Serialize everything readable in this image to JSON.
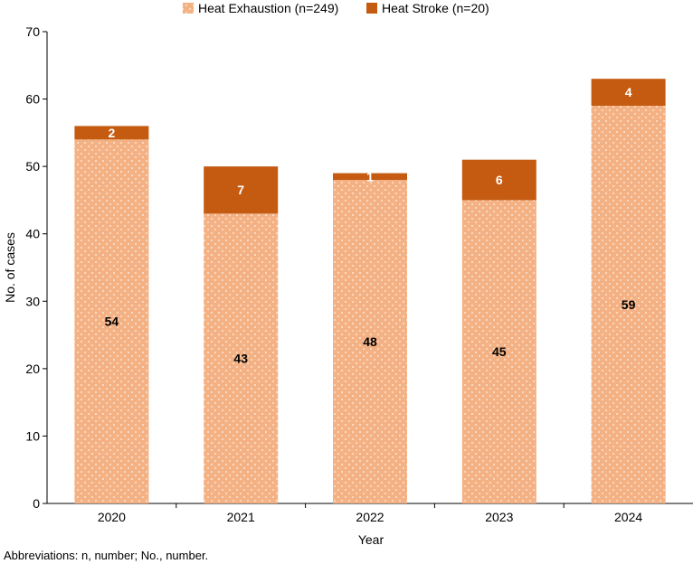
{
  "chart_data": {
    "type": "bar",
    "stacked": true,
    "title": "",
    "xlabel": "Year",
    "ylabel": "No. of cases",
    "ylim": [
      0,
      70
    ],
    "yticks": [
      0,
      10,
      20,
      30,
      40,
      50,
      60,
      70
    ],
    "categories": [
      "2020",
      "2021",
      "2022",
      "2023",
      "2024"
    ],
    "series": [
      {
        "name": "Heat Exhaustion (n=249)",
        "values": [
          54,
          43,
          48,
          45,
          59
        ],
        "color": "#F4B183",
        "label_color": "#000000"
      },
      {
        "name": "Heat Stroke (n=20)",
        "values": [
          2,
          7,
          1,
          6,
          4
        ],
        "color": "#C55A11",
        "label_color": "#ffffff"
      }
    ],
    "legend_position": "top-center",
    "grid": false
  },
  "footnote": "Abbreviations: n, number; No., number."
}
